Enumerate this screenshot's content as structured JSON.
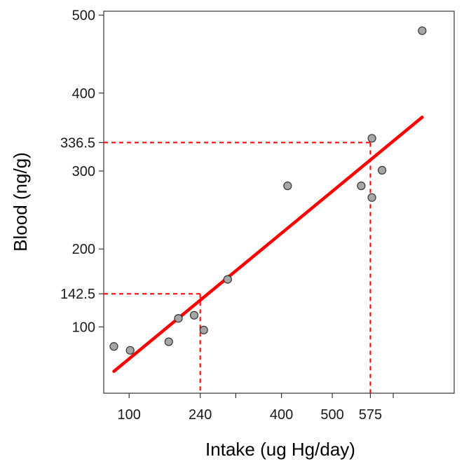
{
  "chart_data": {
    "type": "scatter",
    "title": "",
    "xlabel": "Intake (ug Hg/day)",
    "ylabel": "Blood (ng/g)",
    "xlim": [
      50,
      740
    ],
    "ylim": [
      15,
      505
    ],
    "grid": false,
    "x_ticks": [
      {
        "value": 100,
        "label": "100"
      },
      {
        "value": 240,
        "label": "240"
      },
      {
        "value": 310,
        "label": ""
      },
      {
        "value": 400,
        "label": "400"
      },
      {
        "value": 500,
        "label": "500"
      },
      {
        "value": 575,
        "label": "575"
      },
      {
        "value": 620,
        "label": ""
      }
    ],
    "y_ticks": [
      {
        "value": 100,
        "label": "100"
      },
      {
        "value": 142.5,
        "label": "142.5"
      },
      {
        "value": 200,
        "label": "200"
      },
      {
        "value": 300,
        "label": "300"
      },
      {
        "value": 336.5,
        "label": "336.5"
      },
      {
        "value": 400,
        "label": "400"
      },
      {
        "value": 500,
        "label": "500"
      }
    ],
    "points": [
      {
        "x": 70,
        "y": 75
      },
      {
        "x": 102,
        "y": 70
      },
      {
        "x": 178,
        "y": 81
      },
      {
        "x": 197,
        "y": 111
      },
      {
        "x": 228,
        "y": 115
      },
      {
        "x": 247,
        "y": 96
      },
      {
        "x": 294,
        "y": 161
      },
      {
        "x": 412,
        "y": 281
      },
      {
        "x": 557,
        "y": 281
      },
      {
        "x": 578,
        "y": 342
      },
      {
        "x": 578,
        "y": 266
      },
      {
        "x": 598,
        "y": 301
      },
      {
        "x": 677,
        "y": 480
      }
    ],
    "fit_line": {
      "x": [
        70,
        677
      ],
      "y": [
        43,
        369
      ],
      "color": "#ff0000"
    },
    "reference_lines": [
      {
        "x": 240,
        "y": 142.5
      },
      {
        "x": 575,
        "y": 336.5
      }
    ],
    "colors": {
      "points_fill": "#a6a6a6",
      "points_stroke": "#333333",
      "fit": "#ff0000",
      "reference": "#ff0000"
    }
  }
}
